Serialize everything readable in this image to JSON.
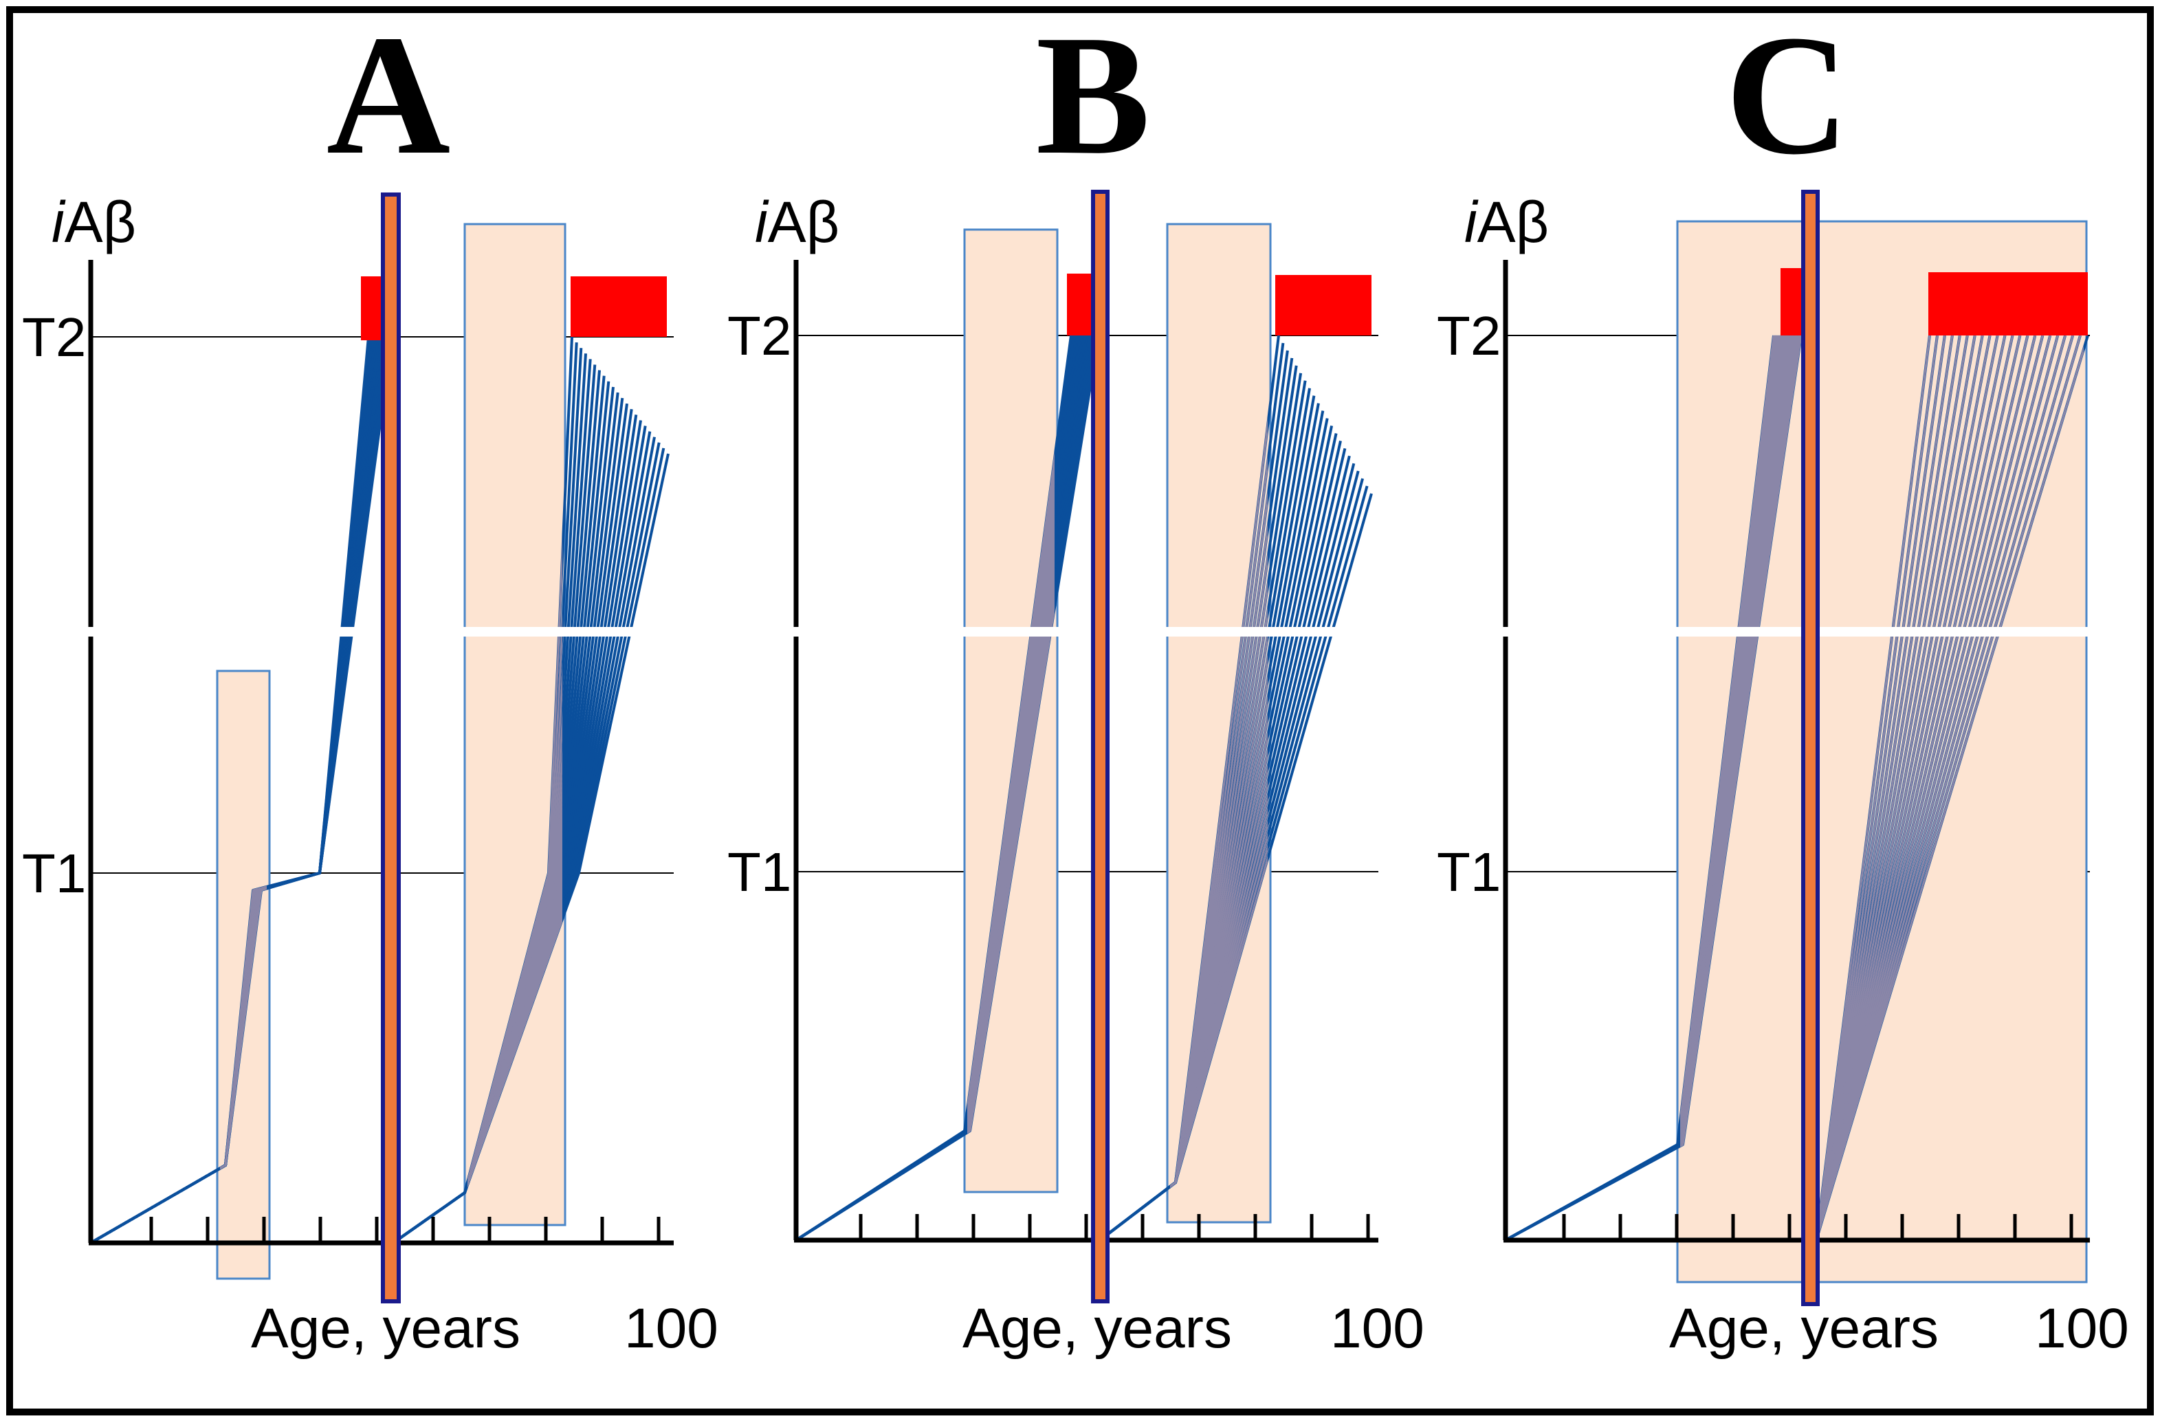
{
  "figure": {
    "panels": [
      {
        "letter": "A",
        "y_axis_label": {
          "italic": "i",
          "rest": "Aβ"
        },
        "thresholds": [
          "T2",
          "T1"
        ],
        "x_axis_label": "Age, years",
        "x_max_label": "100"
      },
      {
        "letter": "B",
        "y_axis_label": {
          "italic": "i",
          "rest": "Aβ"
        },
        "thresholds": [
          "T2",
          "T1"
        ],
        "x_axis_label": "Age, years",
        "x_max_label": "100"
      },
      {
        "letter": "C",
        "y_axis_label": {
          "italic": "i",
          "rest": "Aβ"
        },
        "thresholds": [
          "T2",
          "T1"
        ],
        "x_axis_label": "Age, years",
        "x_max_label": "100"
      }
    ],
    "colors": {
      "trajectory": "#0a4f9c",
      "trajectory_muted": "#8a86a8",
      "treatment_window_fill": "#fde4d2",
      "treatment_window_border": "#4a86c8",
      "disease_bar": "#ff0000",
      "event_marker_fill": "#f07a3a",
      "event_marker_border": "#1a1a8c",
      "axis": "#000000"
    }
  }
}
